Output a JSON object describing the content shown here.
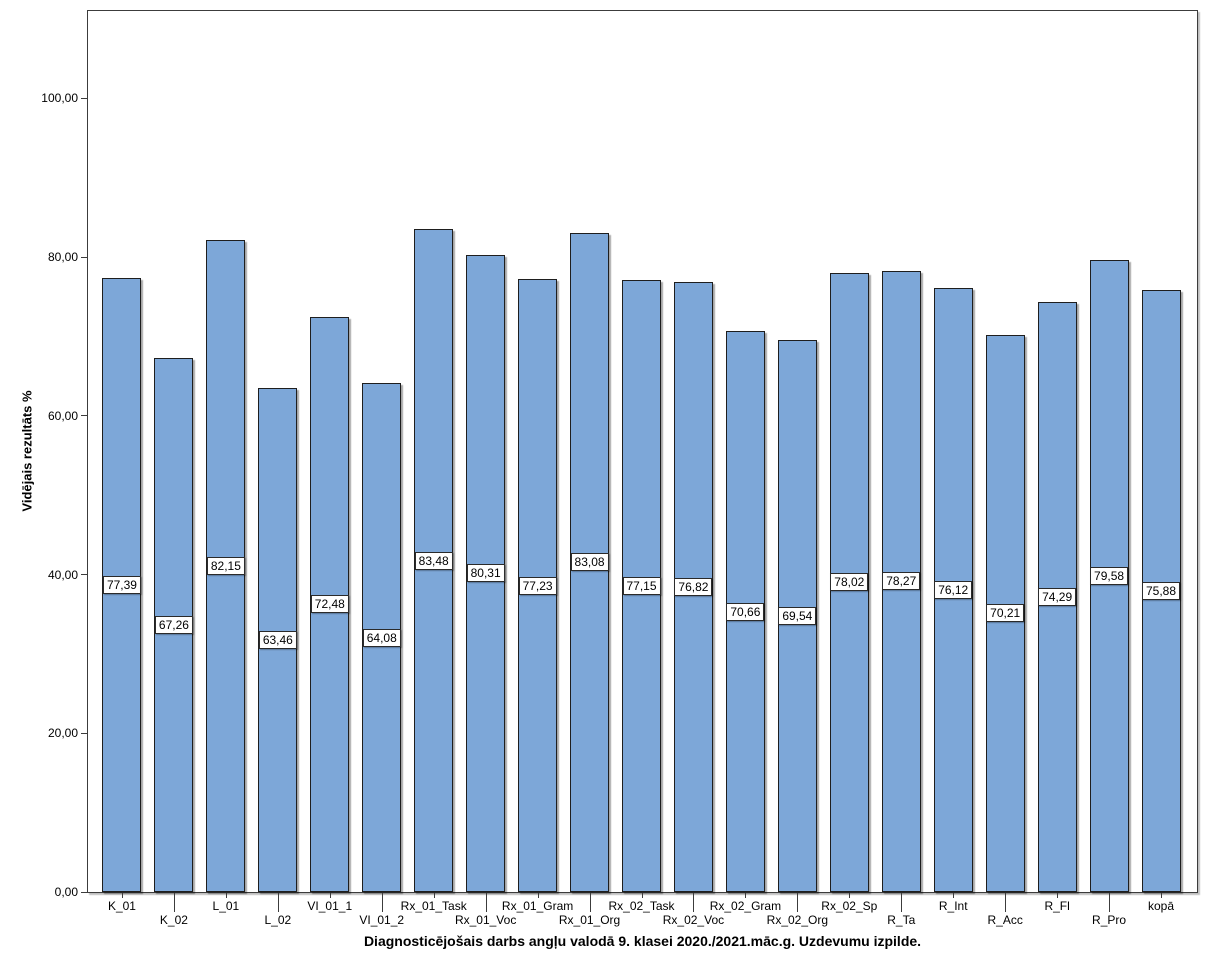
{
  "chart_data": {
    "type": "bar",
    "title": "Diagnosticējošais darbs angļu valodā 9. klasei 2020./2021.māc.g. Uzdevumu izpilde.",
    "xlabel": "",
    "ylabel": "Vidējais rezultāts %",
    "categories": [
      "K_01",
      "K_02",
      "L_01",
      "L_02",
      "VI_01_1",
      "VI_01_2",
      "Rx_01_Task",
      "Rx_01_Voc",
      "Rx_01_Gram",
      "Rx_01_Org",
      "Rx_02_Task",
      "Rx_02_Voc",
      "Rx_02_Gram",
      "Rx_02_Org",
      "Rx_02_Sp",
      "R_Ta",
      "R_Int",
      "R_Acc",
      "R_Fl",
      "R_Pro",
      "kopā"
    ],
    "values": [
      77.39,
      67.26,
      82.15,
      63.46,
      72.48,
      64.08,
      83.48,
      80.31,
      77.23,
      83.08,
      77.15,
      76.82,
      70.66,
      69.54,
      78.02,
      78.27,
      76.12,
      70.21,
      74.29,
      79.58,
      75.88
    ],
    "value_labels": [
      "77,39",
      "67,26",
      "82,15",
      "63,46",
      "72,48",
      "64,08",
      "83,48",
      "80,31",
      "77,23",
      "83,08",
      "77,15",
      "76,82",
      "70,66",
      "69,54",
      "78,02",
      "78,27",
      "76,12",
      "70,21",
      "74,29",
      "79,58",
      "75,88"
    ],
    "yticks": [
      {
        "value": 0,
        "label": "0,00"
      },
      {
        "value": 20,
        "label": "20,00"
      },
      {
        "value": 40,
        "label": "40,00"
      },
      {
        "value": 60,
        "label": "60,00"
      },
      {
        "value": 80,
        "label": "80,00"
      },
      {
        "value": 100,
        "label": "100,00"
      }
    ],
    "ylim": [
      0,
      111
    ],
    "grid": "off",
    "legend": "none",
    "bar_color": "#7da7d8",
    "bar_border_color": "#1e1e1e",
    "value_box_bg": "#ffffff",
    "frame_color": "#3c3c3c"
  }
}
